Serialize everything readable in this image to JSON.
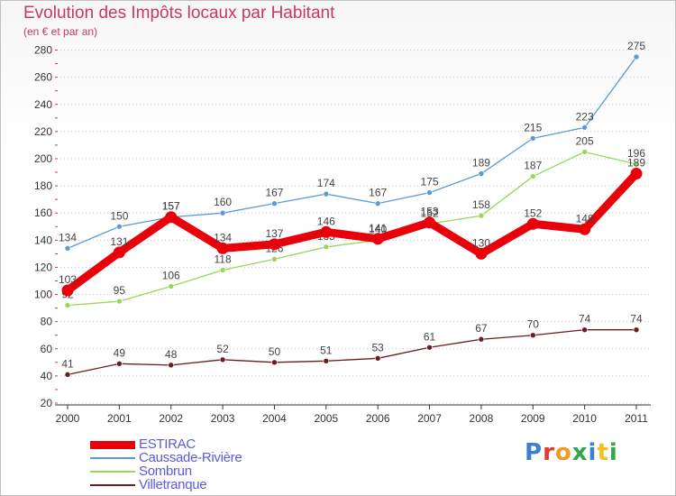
{
  "title": "Evolution des Impôts locaux par Habitant",
  "subtitle": "(en € et par an)",
  "logo": {
    "text": "Proxiti",
    "letter_colors": [
      "#3a7fd5",
      "#e23a2e",
      "#f29a1f",
      "#2ea84a",
      "#3a7fd5",
      "#f2c21f",
      "#2ea84a"
    ]
  },
  "chart_data": {
    "type": "line",
    "title": "Evolution des Impôts locaux par Habitant",
    "subtitle": "(en € et par an)",
    "xlabel": "",
    "ylabel": "",
    "x": [
      "2000",
      "2001",
      "2002",
      "2003",
      "2004",
      "2005",
      "2006",
      "2007",
      "2008",
      "2009",
      "2010",
      "2011"
    ],
    "ylim": [
      20,
      285
    ],
    "yticks": [
      20,
      40,
      60,
      80,
      100,
      120,
      140,
      160,
      180,
      200,
      220,
      240,
      260,
      280
    ],
    "grid": "horizontal dotted",
    "legend_position": "bottom-left",
    "series": [
      {
        "name": "Villetranque",
        "color": "#6b1c1c",
        "style": "thin",
        "values": [
          41,
          49,
          48,
          52,
          50,
          51,
          53,
          61,
          67,
          70,
          74,
          74
        ]
      },
      {
        "name": "Sombrun",
        "color": "#98d65a",
        "style": "thin",
        "values": [
          92,
          95,
          106,
          118,
          126,
          135,
          140,
          152,
          158,
          187,
          205,
          196
        ]
      },
      {
        "name": "Caussade-Rivière",
        "color": "#5b9bd5",
        "style": "thin",
        "values": [
          134,
          150,
          157,
          160,
          167,
          174,
          167,
          175,
          189,
          215,
          223,
          275
        ]
      },
      {
        "name": "ESTIRAC",
        "color": "#e8000b",
        "style": "bold",
        "values": [
          103,
          131,
          157,
          134,
          137,
          146,
          141,
          153,
          130,
          152,
          148,
          189
        ]
      }
    ],
    "legend_order": [
      "ESTIRAC",
      "Caussade-Rivière",
      "Sombrun",
      "Villetranque"
    ],
    "legend_text_color": "#5a5ae0"
  }
}
